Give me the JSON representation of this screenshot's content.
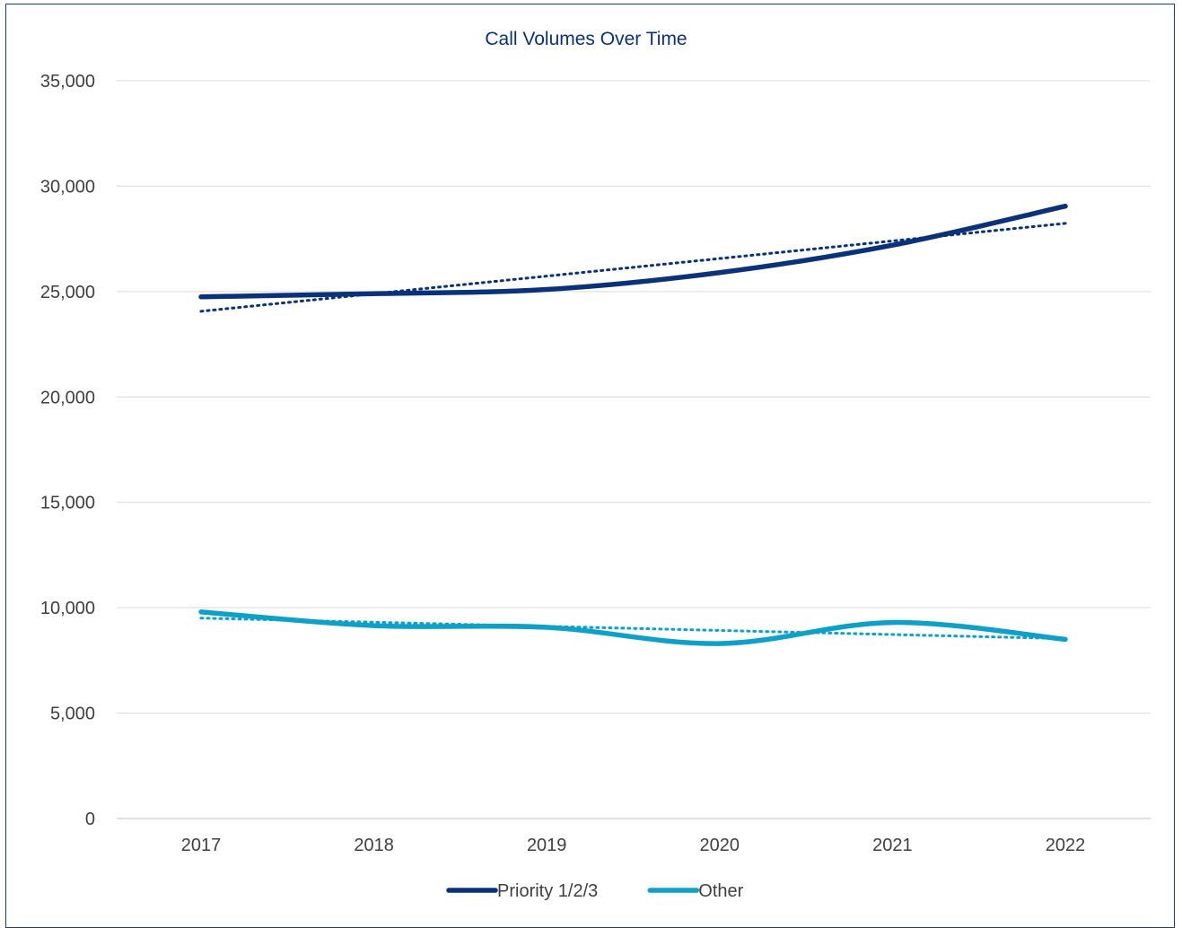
{
  "chart_data": {
    "type": "line",
    "title": "Call Volumes Over Time",
    "xlabel": "",
    "ylabel": "",
    "categories": [
      "2017",
      "2018",
      "2019",
      "2020",
      "2021",
      "2022"
    ],
    "ylim": [
      0,
      35000
    ],
    "y_ticks": [
      0,
      5000,
      10000,
      15000,
      20000,
      25000,
      30000,
      35000
    ],
    "y_tick_labels": [
      "0",
      "5,000",
      "10,000",
      "15,000",
      "20,000",
      "25,000",
      "30,000",
      "35,000"
    ],
    "grid": true,
    "legend_position": "bottom",
    "trendlines": "linear, dotted",
    "series": [
      {
        "name": "Priority 1/2/3",
        "color": "#0b3278",
        "values": [
          24750,
          24900,
          25100,
          25900,
          27200,
          29050
        ]
      },
      {
        "name": "Other",
        "color": "#0fa0c8",
        "values": [
          9800,
          9150,
          9070,
          8300,
          9300,
          8500
        ]
      }
    ]
  }
}
